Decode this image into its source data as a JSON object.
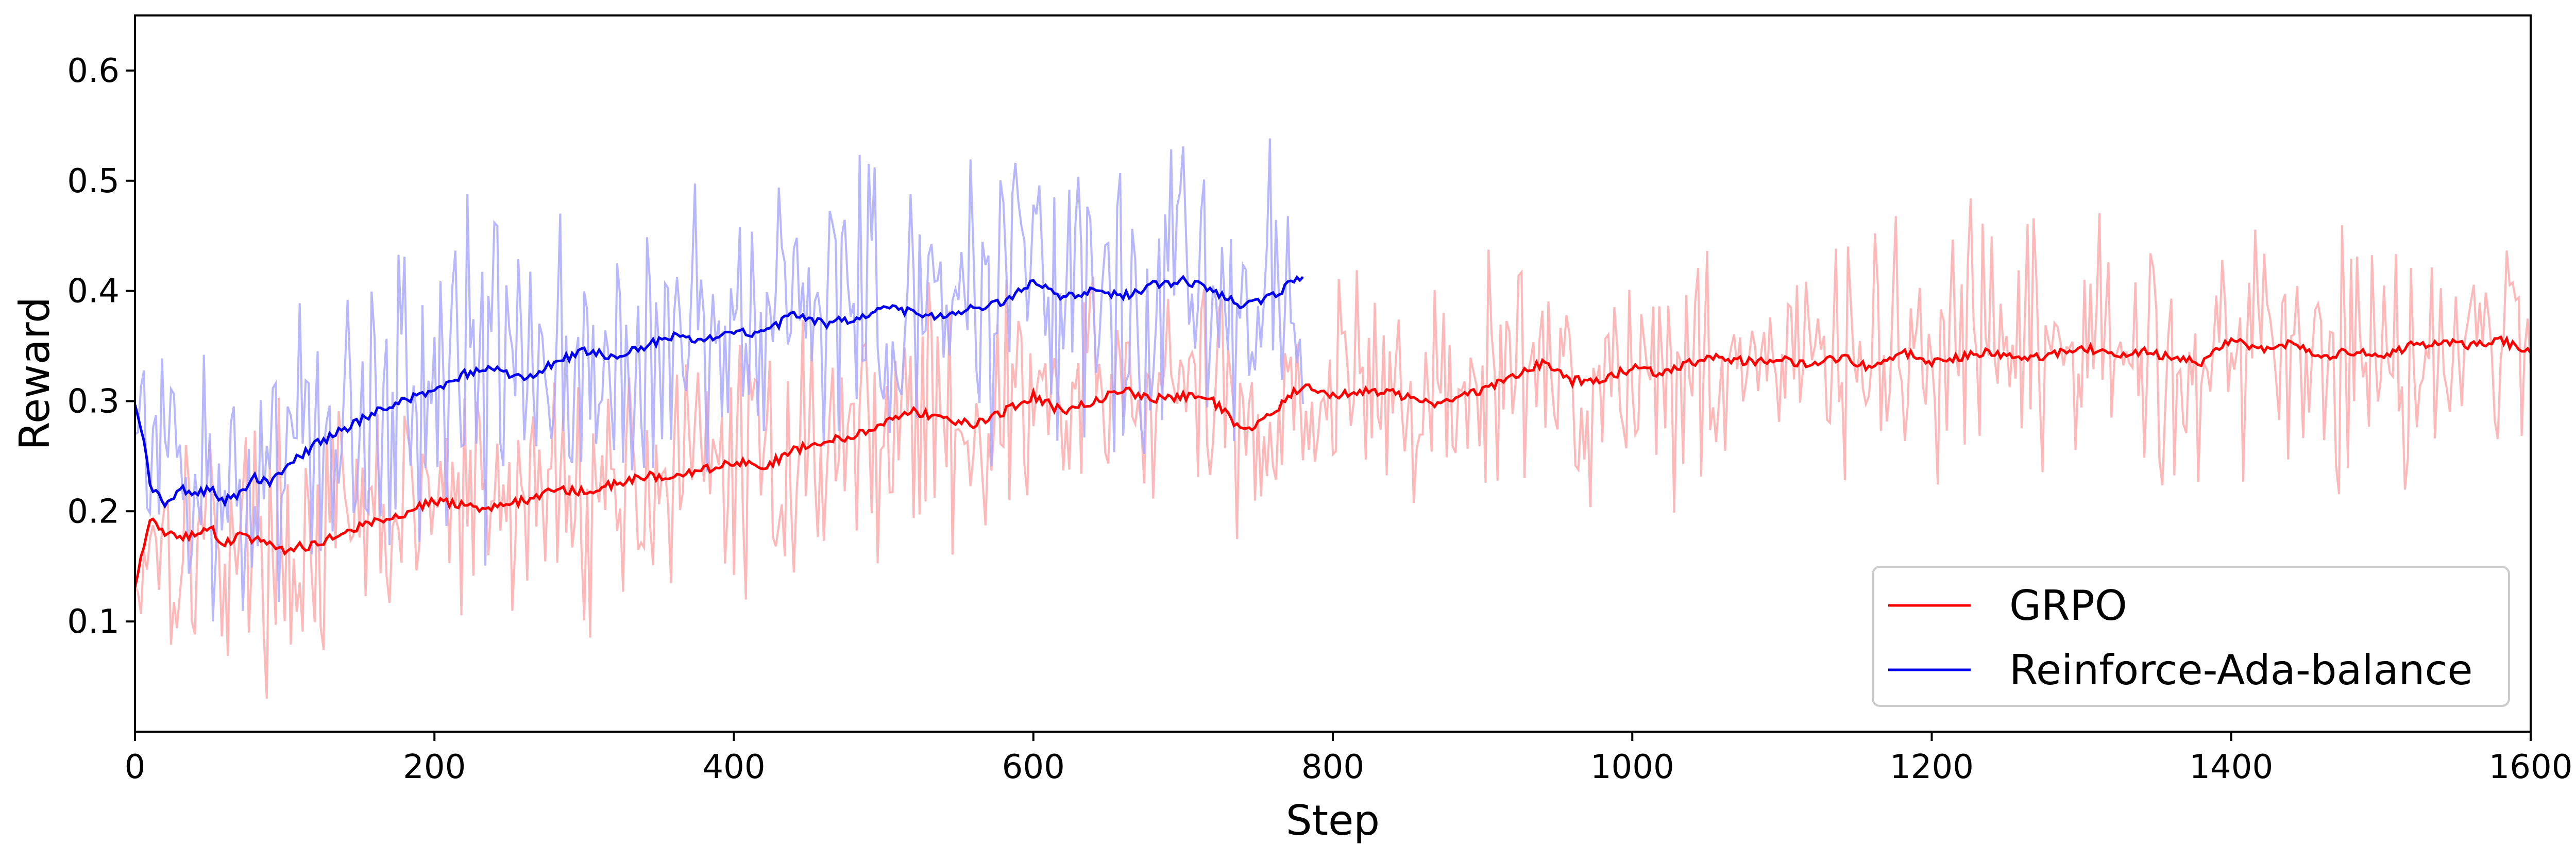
{
  "chart_data": {
    "type": "line",
    "title": "",
    "xlabel": "Step",
    "ylabel": "Reward",
    "xlim": [
      0,
      1600
    ],
    "ylim": [
      0,
      0.65
    ],
    "xticks": [
      0,
      200,
      400,
      600,
      800,
      1000,
      1200,
      1400,
      1600
    ],
    "yticks": [
      0.1,
      0.2,
      0.3,
      0.4,
      0.5,
      0.6
    ],
    "grid": false,
    "legend_position": "lower-right",
    "series": [
      {
        "name": "GRPO",
        "color": "#ff0000",
        "raw_color": "#ffaaaa",
        "smoothed": {
          "x": [
            0,
            10,
            20,
            30,
            40,
            50,
            60,
            70,
            80,
            90,
            100,
            120,
            140,
            160,
            180,
            200,
            220,
            240,
            260,
            280,
            300,
            320,
            340,
            360,
            380,
            400,
            420,
            440,
            460,
            480,
            500,
            520,
            540,
            560,
            580,
            600,
            620,
            640,
            660,
            680,
            700,
            720,
            740,
            760,
            780,
            800,
            820,
            840,
            860,
            880,
            900,
            920,
            940,
            960,
            980,
            1000,
            1020,
            1040,
            1060,
            1080,
            1100,
            1120,
            1140,
            1160,
            1180,
            1200,
            1220,
            1240,
            1260,
            1280,
            1300,
            1320,
            1340,
            1360,
            1380,
            1400,
            1420,
            1440,
            1460,
            1480,
            1500,
            1520,
            1540,
            1560,
            1580,
            1600
          ],
          "y": [
            0.13,
            0.195,
            0.182,
            0.175,
            0.18,
            0.185,
            0.17,
            0.178,
            0.175,
            0.172,
            0.165,
            0.17,
            0.182,
            0.19,
            0.198,
            0.21,
            0.205,
            0.203,
            0.21,
            0.22,
            0.218,
            0.225,
            0.232,
            0.23,
            0.238,
            0.245,
            0.24,
            0.255,
            0.263,
            0.268,
            0.28,
            0.29,
            0.285,
            0.278,
            0.29,
            0.305,
            0.29,
            0.3,
            0.31,
            0.302,
            0.305,
            0.3,
            0.272,
            0.29,
            0.315,
            0.305,
            0.31,
            0.308,
            0.298,
            0.3,
            0.31,
            0.322,
            0.335,
            0.318,
            0.32,
            0.33,
            0.325,
            0.335,
            0.34,
            0.335,
            0.338,
            0.332,
            0.34,
            0.33,
            0.345,
            0.335,
            0.34,
            0.345,
            0.338,
            0.342,
            0.35,
            0.342,
            0.345,
            0.34,
            0.335,
            0.355,
            0.348,
            0.352,
            0.34,
            0.345,
            0.342,
            0.35,
            0.355,
            0.35,
            0.355,
            0.345
          ]
        }
      },
      {
        "name": "Reinforce-Ada-balance",
        "color": "#0000ee",
        "raw_color": "#aaaaff",
        "smoothed": {
          "x": [
            0,
            5,
            10,
            20,
            30,
            40,
            50,
            60,
            70,
            80,
            90,
            100,
            120,
            140,
            160,
            180,
            200,
            220,
            240,
            260,
            280,
            300,
            320,
            340,
            360,
            380,
            400,
            420,
            440,
            460,
            480,
            500,
            520,
            540,
            560,
            580,
            600,
            620,
            640,
            660,
            680,
            700,
            720,
            740,
            760,
            780
          ],
          "y": [
            0.3,
            0.27,
            0.225,
            0.205,
            0.22,
            0.215,
            0.22,
            0.21,
            0.215,
            0.23,
            0.225,
            0.24,
            0.26,
            0.275,
            0.29,
            0.3,
            0.31,
            0.325,
            0.33,
            0.32,
            0.335,
            0.345,
            0.34,
            0.35,
            0.36,
            0.355,
            0.365,
            0.36,
            0.38,
            0.37,
            0.375,
            0.385,
            0.38,
            0.375,
            0.385,
            0.39,
            0.41,
            0.395,
            0.4,
            0.395,
            0.405,
            0.41,
            0.4,
            0.385,
            0.395,
            0.415
          ]
        }
      }
    ]
  }
}
